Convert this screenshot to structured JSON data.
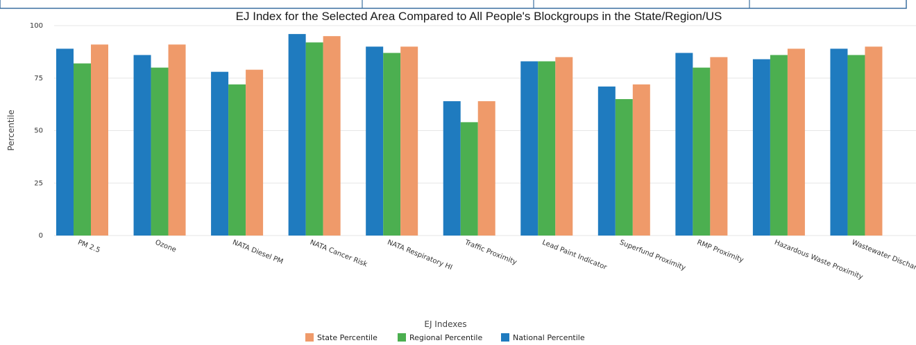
{
  "chart_data": {
    "type": "bar",
    "title": "EJ Index for the Selected Area Compared to All People's Blockgroups in the State/Region/US",
    "xlabel": "EJ Indexes",
    "ylabel": "Percentile",
    "ylim": [
      0,
      100
    ],
    "yticks": [
      "0",
      "25",
      "50",
      "75",
      "100"
    ],
    "grid": true,
    "legend_position": "bottom",
    "categories": [
      "PM 2.5",
      "Ozone",
      "NATA Diesel PM",
      "NATA Cancer Risk",
      "NATA Respiratory HI",
      "Traffic Proximity",
      "Lead Paint Indicator",
      "Superfund Proximity",
      "RMP Proximity",
      "Hazardous Waste Proximity",
      "Wastewater Discharge Indicator"
    ],
    "series": [
      {
        "name": "National Percentile",
        "color": "#1f7bbf",
        "values": [
          89,
          86,
          78,
          96,
          90,
          64,
          83,
          71,
          87,
          84,
          89
        ]
      },
      {
        "name": "Regional Percentile",
        "color": "#4caf50",
        "values": [
          82,
          80,
          72,
          92,
          87,
          54,
          83,
          65,
          80,
          86,
          86
        ]
      },
      {
        "name": "State Percentile",
        "color": "#ef9a6a",
        "values": [
          91,
          91,
          79,
          95,
          90,
          64,
          85,
          72,
          85,
          89,
          90
        ]
      }
    ],
    "legend_order": [
      "State Percentile",
      "Regional Percentile",
      "National Percentile"
    ]
  },
  "colors": {
    "gridline": "#e6e6e6",
    "top_strip_border": "#3a6fa0"
  }
}
